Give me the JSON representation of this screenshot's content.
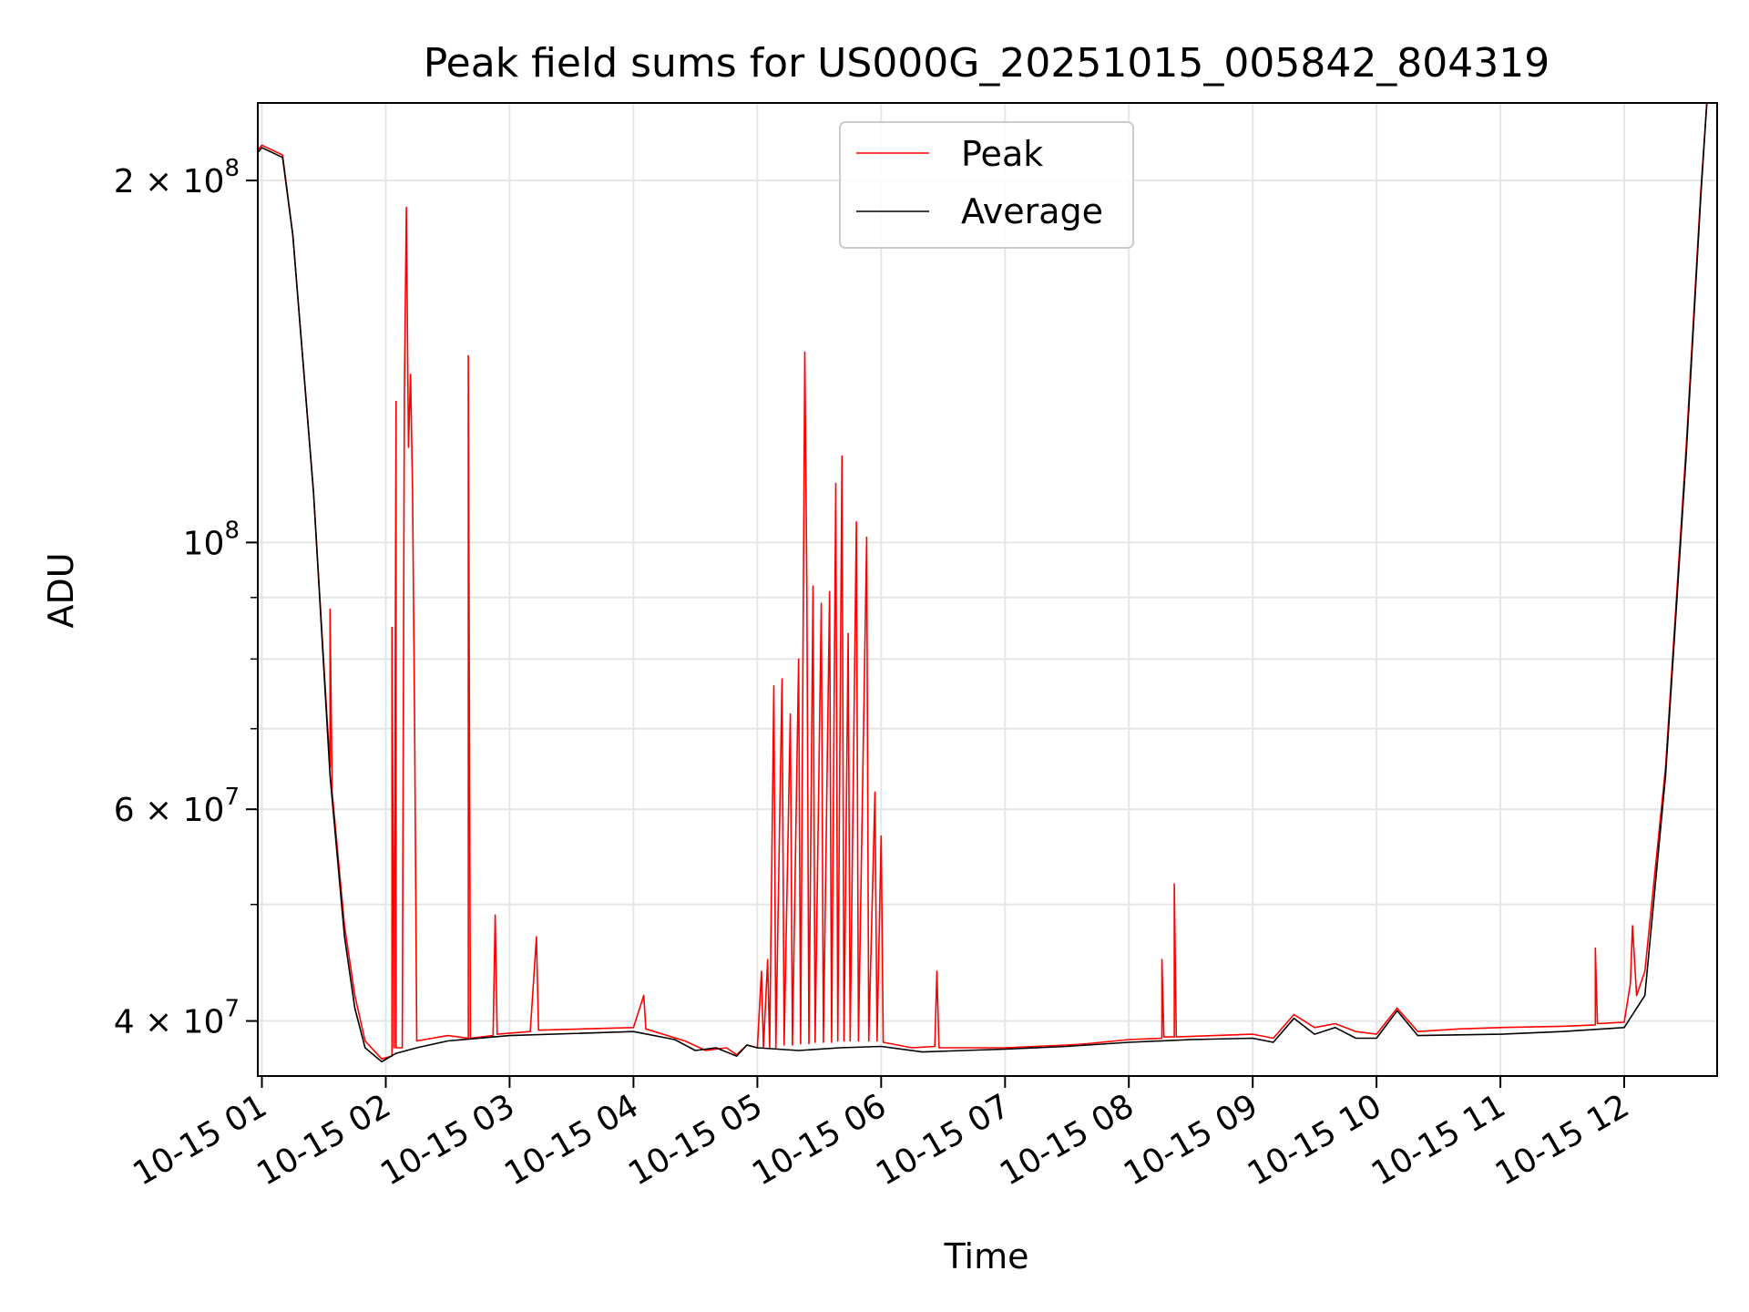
{
  "chart_data": {
    "type": "line",
    "title": "Peak field sums for US000G_20251015_005842_804319",
    "xlabel": "Time",
    "ylabel": "ADU",
    "y_scale": "log",
    "ylim": [
      36000000,
      232000000
    ],
    "xlim": [
      "2025-10-15 00:58",
      "2025-10-15 12:45"
    ],
    "grid": true,
    "legend_position": "upper center",
    "x_ticks": [
      {
        "value": "2025-10-15 01:00",
        "label": "10-15 01"
      },
      {
        "value": "2025-10-15 02:00",
        "label": "10-15 02"
      },
      {
        "value": "2025-10-15 03:00",
        "label": "10-15 03"
      },
      {
        "value": "2025-10-15 04:00",
        "label": "10-15 04"
      },
      {
        "value": "2025-10-15 05:00",
        "label": "10-15 05"
      },
      {
        "value": "2025-10-15 06:00",
        "label": "10-15 06"
      },
      {
        "value": "2025-10-15 07:00",
        "label": "10-15 07"
      },
      {
        "value": "2025-10-15 08:00",
        "label": "10-15 08"
      },
      {
        "value": "2025-10-15 09:00",
        "label": "10-15 09"
      },
      {
        "value": "2025-10-15 10:00",
        "label": "10-15 10"
      },
      {
        "value": "2025-10-15 11:00",
        "label": "10-15 11"
      },
      {
        "value": "2025-10-15 12:00",
        "label": "10-15 12"
      }
    ],
    "y_ticks_major": [
      {
        "value": 40000000,
        "label": "4 × 10^7",
        "base": "4 × 10",
        "exp": "7"
      },
      {
        "value": 60000000,
        "label": "6 × 10^7",
        "base": "6 × 10",
        "exp": "7"
      },
      {
        "value": 100000000,
        "label": "10^8",
        "base": "10",
        "exp": "8"
      },
      {
        "value": 200000000,
        "label": "2 × 10^8",
        "base": "2 × 10",
        "exp": "8"
      }
    ],
    "y_ticks_minor": [
      50000000,
      70000000,
      80000000,
      90000000
    ],
    "series": [
      {
        "name": "Peak",
        "color": "#ff0000",
        "points": [
          [
            "2025-10-15 00:58",
            212000000
          ],
          [
            "2025-10-15 01:00",
            214000000
          ],
          [
            "2025-10-15 01:10",
            210000000
          ],
          [
            "2025-10-15 01:15",
            180000000
          ],
          [
            "2025-10-15 01:25",
            110000000
          ],
          [
            "2025-10-15 01:33",
            65000000
          ],
          [
            "2025-10-15 01:33",
            88000000
          ],
          [
            "2025-10-15 01:34",
            62000000
          ],
          [
            "2025-10-15 01:40",
            48000000
          ],
          [
            "2025-10-15 01:45",
            42000000
          ],
          [
            "2025-10-15 01:50",
            38500000
          ],
          [
            "2025-10-15 01:58",
            37200000
          ],
          [
            "2025-10-15 02:03",
            37400000
          ],
          [
            "2025-10-15 02:03",
            85000000
          ],
          [
            "2025-10-15 02:04",
            38000000
          ],
          [
            "2025-10-15 02:05",
            131000000
          ],
          [
            "2025-10-15 02:05",
            38000000
          ],
          [
            "2025-10-15 02:08",
            38000000
          ],
          [
            "2025-10-15 02:09",
            133000000
          ],
          [
            "2025-10-15 02:10",
            190000000
          ],
          [
            "2025-10-15 02:11",
            120000000
          ],
          [
            "2025-10-15 02:12",
            138000000
          ],
          [
            "2025-10-15 02:13",
            110000000
          ],
          [
            "2025-10-15 02:14",
            70000000
          ],
          [
            "2025-10-15 02:15",
            38500000
          ],
          [
            "2025-10-15 02:30",
            38900000
          ],
          [
            "2025-10-15 02:40",
            38700000
          ],
          [
            "2025-10-15 02:40",
            143000000
          ],
          [
            "2025-10-15 02:41",
            38700000
          ],
          [
            "2025-10-15 02:52",
            38900000
          ],
          [
            "2025-10-15 02:53",
            49000000
          ],
          [
            "2025-10-15 02:54",
            39000000
          ],
          [
            "2025-10-15 03:10",
            39200000
          ],
          [
            "2025-10-15 03:13",
            47000000
          ],
          [
            "2025-10-15 03:14",
            39300000
          ],
          [
            "2025-10-15 04:00",
            39500000
          ],
          [
            "2025-10-15 04:05",
            42000000
          ],
          [
            "2025-10-15 04:06",
            39400000
          ],
          [
            "2025-10-15 04:25",
            38500000
          ],
          [
            "2025-10-15 04:35",
            37800000
          ],
          [
            "2025-10-15 04:45",
            38000000
          ],
          [
            "2025-10-15 04:50",
            37500000
          ],
          [
            "2025-10-15 04:55",
            38200000
          ],
          [
            "2025-10-15 05:00",
            38000000
          ],
          [
            "2025-10-15 05:02",
            44000000
          ],
          [
            "2025-10-15 05:03",
            38000000
          ],
          [
            "2025-10-15 05:05",
            45000000
          ],
          [
            "2025-10-15 05:06",
            38000000
          ],
          [
            "2025-10-15 05:08",
            76000000
          ],
          [
            "2025-10-15 05:09",
            38000000
          ],
          [
            "2025-10-15 05:12",
            77000000
          ],
          [
            "2025-10-15 05:13",
            38200000
          ],
          [
            "2025-10-15 05:16",
            72000000
          ],
          [
            "2025-10-15 05:17",
            38200000
          ],
          [
            "2025-10-15 05:20",
            80000000
          ],
          [
            "2025-10-15 05:21",
            38300000
          ],
          [
            "2025-10-15 05:23",
            144000000
          ],
          [
            "2025-10-15 05:24",
            93000000
          ],
          [
            "2025-10-15 05:25",
            38300000
          ],
          [
            "2025-10-15 05:27",
            92000000
          ],
          [
            "2025-10-15 05:28",
            38400000
          ],
          [
            "2025-10-15 05:31",
            89000000
          ],
          [
            "2025-10-15 05:32",
            38400000
          ],
          [
            "2025-10-15 05:35",
            91000000
          ],
          [
            "2025-10-15 05:36",
            38400000
          ],
          [
            "2025-10-15 05:38",
            112000000
          ],
          [
            "2025-10-15 05:39",
            38500000
          ],
          [
            "2025-10-15 05:41",
            118000000
          ],
          [
            "2025-10-15 05:42",
            38500000
          ],
          [
            "2025-10-15 05:44",
            84000000
          ],
          [
            "2025-10-15 05:45",
            38500000
          ],
          [
            "2025-10-15 05:48",
            104000000
          ],
          [
            "2025-10-15 05:49",
            38500000
          ],
          [
            "2025-10-15 05:53",
            101000000
          ],
          [
            "2025-10-15 05:54",
            38500000
          ],
          [
            "2025-10-15 05:57",
            62000000
          ],
          [
            "2025-10-15 05:58",
            38500000
          ],
          [
            "2025-10-15 06:00",
            57000000
          ],
          [
            "2025-10-15 06:01",
            38400000
          ],
          [
            "2025-10-15 06:08",
            38200000
          ],
          [
            "2025-10-15 06:15",
            38000000
          ],
          [
            "2025-10-15 06:26",
            38100000
          ],
          [
            "2025-10-15 06:27",
            44000000
          ],
          [
            "2025-10-15 06:28",
            38000000
          ],
          [
            "2025-10-15 07:00",
            38000000
          ],
          [
            "2025-10-15 07:30",
            38200000
          ],
          [
            "2025-10-15 07:40",
            38300000
          ],
          [
            "2025-10-15 08:00",
            38600000
          ],
          [
            "2025-10-15 08:16",
            38700000
          ],
          [
            "2025-10-15 08:16",
            45000000
          ],
          [
            "2025-10-15 08:17",
            38800000
          ],
          [
            "2025-10-15 08:22",
            38800000
          ],
          [
            "2025-10-15 08:22",
            52000000
          ],
          [
            "2025-10-15 08:23",
            38800000
          ],
          [
            "2025-10-15 09:00",
            39000000
          ],
          [
            "2025-10-15 09:10",
            38700000
          ],
          [
            "2025-10-15 09:20",
            40500000
          ],
          [
            "2025-10-15 09:30",
            39500000
          ],
          [
            "2025-10-15 09:40",
            39800000
          ],
          [
            "2025-10-15 09:50",
            39200000
          ],
          [
            "2025-10-15 10:00",
            39000000
          ],
          [
            "2025-10-15 10:10",
            41000000
          ],
          [
            "2025-10-15 10:20",
            39200000
          ],
          [
            "2025-10-15 10:40",
            39400000
          ],
          [
            "2025-10-15 11:00",
            39500000
          ],
          [
            "2025-10-15 11:30",
            39600000
          ],
          [
            "2025-10-15 11:46",
            39700000
          ],
          [
            "2025-10-15 11:46",
            46000000
          ],
          [
            "2025-10-15 11:47",
            39800000
          ],
          [
            "2025-10-15 12:00",
            39900000
          ],
          [
            "2025-10-15 12:03",
            43000000
          ],
          [
            "2025-10-15 12:04",
            48000000
          ],
          [
            "2025-10-15 12:06",
            42000000
          ],
          [
            "2025-10-15 12:10",
            44000000
          ],
          [
            "2025-10-15 12:20",
            65000000
          ],
          [
            "2025-10-15 12:30",
            120000000
          ],
          [
            "2025-10-15 12:37",
            195000000
          ],
          [
            "2025-10-15 12:40",
            232000000
          ]
        ]
      },
      {
        "name": "Average",
        "color": "#000000",
        "points": [
          [
            "2025-10-15 00:58",
            211000000
          ],
          [
            "2025-10-15 01:00",
            213000000
          ],
          [
            "2025-10-15 01:10",
            209000000
          ],
          [
            "2025-10-15 01:15",
            180000000
          ],
          [
            "2025-10-15 01:25",
            110000000
          ],
          [
            "2025-10-15 01:33",
            64000000
          ],
          [
            "2025-10-15 01:40",
            47000000
          ],
          [
            "2025-10-15 01:45",
            41000000
          ],
          [
            "2025-10-15 01:50",
            38000000
          ],
          [
            "2025-10-15 01:58",
            37000000
          ],
          [
            "2025-10-15 02:05",
            37600000
          ],
          [
            "2025-10-15 02:15",
            38000000
          ],
          [
            "2025-10-15 02:30",
            38500000
          ],
          [
            "2025-10-15 03:00",
            38900000
          ],
          [
            "2025-10-15 04:00",
            39200000
          ],
          [
            "2025-10-15 04:20",
            38600000
          ],
          [
            "2025-10-15 04:30",
            37800000
          ],
          [
            "2025-10-15 04:40",
            38000000
          ],
          [
            "2025-10-15 04:50",
            37400000
          ],
          [
            "2025-10-15 04:55",
            38200000
          ],
          [
            "2025-10-15 05:00",
            38000000
          ],
          [
            "2025-10-15 05:20",
            37800000
          ],
          [
            "2025-10-15 05:40",
            38000000
          ],
          [
            "2025-10-15 06:00",
            38100000
          ],
          [
            "2025-10-15 06:20",
            37700000
          ],
          [
            "2025-10-15 06:40",
            37800000
          ],
          [
            "2025-10-15 07:00",
            37900000
          ],
          [
            "2025-10-15 07:30",
            38100000
          ],
          [
            "2025-10-15 08:00",
            38400000
          ],
          [
            "2025-10-15 08:30",
            38600000
          ],
          [
            "2025-10-15 09:00",
            38700000
          ],
          [
            "2025-10-15 09:10",
            38400000
          ],
          [
            "2025-10-15 09:20",
            40200000
          ],
          [
            "2025-10-15 09:30",
            39000000
          ],
          [
            "2025-10-15 09:40",
            39500000
          ],
          [
            "2025-10-15 09:50",
            38700000
          ],
          [
            "2025-10-15 10:00",
            38700000
          ],
          [
            "2025-10-15 10:10",
            40800000
          ],
          [
            "2025-10-15 10:20",
            38900000
          ],
          [
            "2025-10-15 11:00",
            39000000
          ],
          [
            "2025-10-15 11:30",
            39200000
          ],
          [
            "2025-10-15 12:00",
            39500000
          ],
          [
            "2025-10-15 12:10",
            42000000
          ],
          [
            "2025-10-15 12:20",
            64000000
          ],
          [
            "2025-10-15 12:30",
            118000000
          ],
          [
            "2025-10-15 12:37",
            193000000
          ],
          [
            "2025-10-15 12:40",
            232000000
          ]
        ]
      }
    ]
  }
}
